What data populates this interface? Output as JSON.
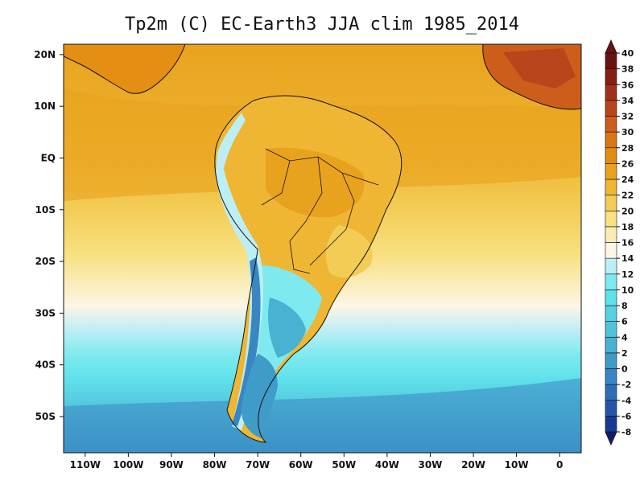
{
  "title": "Tp2m (C) EC-Earth3 JJA clim 1985_2014",
  "chart_data": {
    "type": "heatmap",
    "title": "Tp2m (C) EC-Earth3 JJA clim 1985_2014",
    "variable": "Tp2m",
    "units": "C",
    "model": "EC-Earth3",
    "season": "JJA",
    "period": "1985_2014",
    "x_range": [
      -115,
      5
    ],
    "y_range": [
      -57,
      22
    ],
    "x_ticks": [
      {
        "value": -110,
        "label": "110W"
      },
      {
        "value": -100,
        "label": "100W"
      },
      {
        "value": -90,
        "label": "90W"
      },
      {
        "value": -80,
        "label": "80W"
      },
      {
        "value": -70,
        "label": "70W"
      },
      {
        "value": -60,
        "label": "60W"
      },
      {
        "value": -50,
        "label": "50W"
      },
      {
        "value": -40,
        "label": "40W"
      },
      {
        "value": -30,
        "label": "30W"
      },
      {
        "value": -20,
        "label": "20W"
      },
      {
        "value": -10,
        "label": "10W"
      },
      {
        "value": 0,
        "label": "0"
      }
    ],
    "y_ticks": [
      {
        "value": 20,
        "label": "20N"
      },
      {
        "value": 10,
        "label": "10N"
      },
      {
        "value": 0,
        "label": "EQ"
      },
      {
        "value": -10,
        "label": "10S"
      },
      {
        "value": -20,
        "label": "20S"
      },
      {
        "value": -30,
        "label": "30S"
      },
      {
        "value": -40,
        "label": "40S"
      },
      {
        "value": -50,
        "label": "50S"
      }
    ],
    "colorbar": {
      "levels": [
        "-8",
        "-6",
        "-4",
        "-2",
        "0",
        "2",
        "4",
        "6",
        "8",
        "10",
        "12",
        "14",
        "16",
        "18",
        "20",
        "22",
        "24",
        "26",
        "28",
        "30",
        "32",
        "34",
        "36",
        "38",
        "40"
      ],
      "colors": [
        "#0c1d6b",
        "#173a8f",
        "#2356a8",
        "#2e6eb7",
        "#3a86c2",
        "#3f9cc8",
        "#49b1d1",
        "#52c2db",
        "#58d2e3",
        "#5fe1ea",
        "#7eeaf0",
        "#bdeef5",
        "#fdf6e6",
        "#fbebb4",
        "#f8e183",
        "#f3cc55",
        "#eeb633",
        "#e9a21d",
        "#e38c12",
        "#d97615",
        "#cc5d1a",
        "#b8451c",
        "#a1311b",
        "#861f17",
        "#6a1111"
      ]
    },
    "temperature_zones_ocean": [
      {
        "lat_range": [
          20,
          5
        ],
        "approx_c": 28
      },
      {
        "lat_range": [
          5,
          -10
        ],
        "approx_c": 26
      },
      {
        "lat_range": [
          -10,
          -20
        ],
        "approx_c": 22
      },
      {
        "lat_range": [
          -20,
          -28
        ],
        "approx_c": 19
      },
      {
        "lat_range": [
          -28,
          -35
        ],
        "approx_c": 16
      },
      {
        "lat_range": [
          -35,
          -40
        ],
        "approx_c": 13
      },
      {
        "lat_range": [
          -40,
          -48
        ],
        "approx_c": 10
      },
      {
        "lat_range": [
          -48,
          -57
        ],
        "approx_c": 7
      }
    ]
  }
}
